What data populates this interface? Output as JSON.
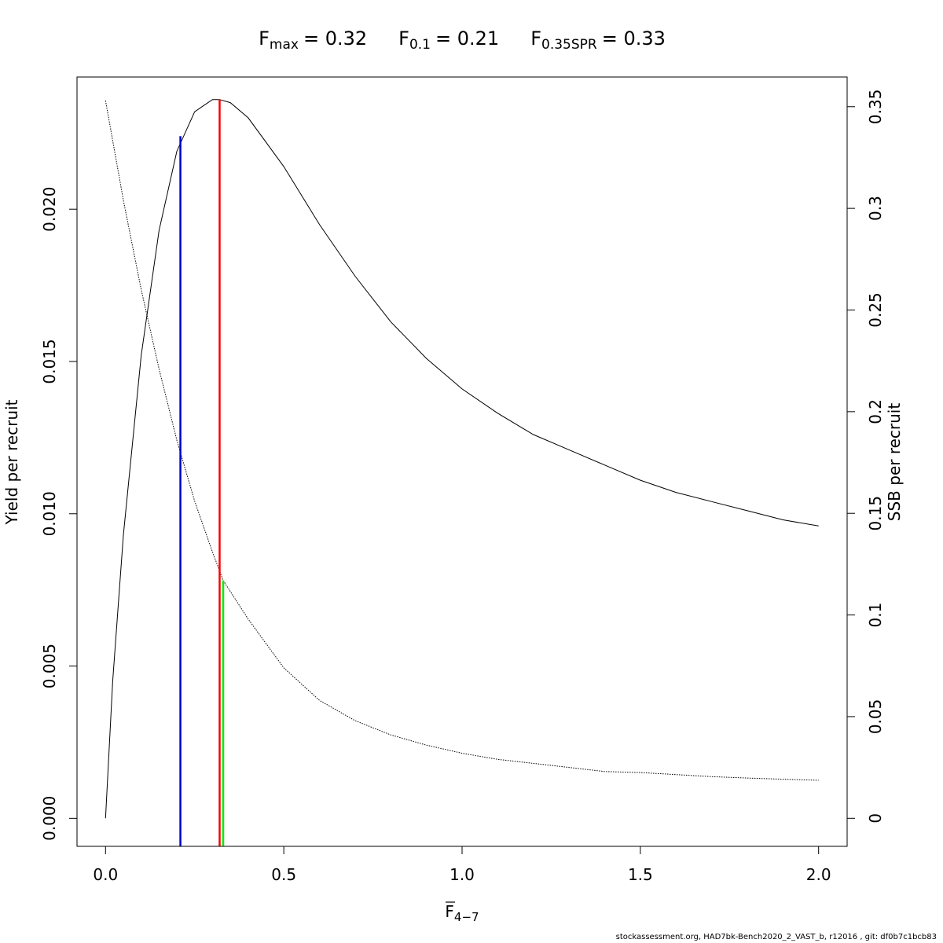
{
  "chart_data": {
    "type": "line",
    "title": {
      "fmax": {
        "base": "F",
        "sub": "max",
        "value": "= 0.32"
      },
      "f01": {
        "base": "F",
        "sub": "0.1",
        "value": "= 0.21"
      },
      "fspr": {
        "base": "F",
        "sub": "0.35SPR",
        "value": "= 0.33"
      }
    },
    "xlabel": {
      "base": "F",
      "sub": "4−7"
    },
    "ylabel_left": "Yield per recruit",
    "ylabel_right": "SSB per recruit",
    "xlim": [
      -0.08,
      2.08
    ],
    "ylim_left": [
      -0.00092,
      0.02434
    ],
    "ylim_right": [
      -0.0138,
      0.3646
    ],
    "x_ticks": [
      0,
      0.5,
      1,
      1.5,
      2
    ],
    "x_tick_labels": [
      "0.0",
      "0.5",
      "1.0",
      "1.5",
      "2.0"
    ],
    "y_left_ticks": [
      0,
      0.005,
      0.01,
      0.015,
      0.02
    ],
    "y_left_tick_labels": [
      "0.000",
      "0.005",
      "0.010",
      "0.015",
      "0.020"
    ],
    "y_right_ticks": [
      0,
      0.05,
      0.1,
      0.15,
      0.2,
      0.25,
      0.3,
      0.35
    ],
    "y_right_tick_labels": [
      "0",
      "0.05",
      "0.1",
      "0.15",
      "0.2",
      "0.25",
      "0.3",
      "0.35"
    ],
    "series": [
      {
        "axis": "left",
        "style": "solid",
        "color": "#000000",
        "x": [
          0,
          0.02,
          0.05,
          0.1,
          0.15,
          0.2,
          0.25,
          0.3,
          0.32,
          0.35,
          0.4,
          0.5,
          0.6,
          0.7,
          0.8,
          0.9,
          1.0,
          1.1,
          1.2,
          1.3,
          1.4,
          1.5,
          1.6,
          1.7,
          1.8,
          1.9,
          2.0
        ],
        "values": [
          0,
          0.0045,
          0.0093,
          0.0152,
          0.0193,
          0.0219,
          0.0232,
          0.0236,
          0.0236,
          0.0235,
          0.023,
          0.0214,
          0.0195,
          0.0178,
          0.0163,
          0.0151,
          0.0141,
          0.0133,
          0.0126,
          0.0121,
          0.0116,
          0.0111,
          0.0107,
          0.0104,
          0.0101,
          0.0098,
          0.0096
        ]
      },
      {
        "axis": "right",
        "style": "dotted",
        "color": "#000000",
        "x": [
          0,
          0.05,
          0.1,
          0.15,
          0.2,
          0.25,
          0.3,
          0.33,
          0.4,
          0.5,
          0.6,
          0.7,
          0.8,
          0.9,
          1.0,
          1.1,
          1.2,
          1.3,
          1.4,
          1.5,
          1.6,
          1.7,
          1.8,
          1.9,
          2.0
        ],
        "values": [
          0.353,
          0.304,
          0.26,
          0.221,
          0.186,
          0.156,
          0.131,
          0.117,
          0.098,
          0.074,
          0.058,
          0.048,
          0.041,
          0.036,
          0.032,
          0.029,
          0.027,
          0.025,
          0.023,
          0.0225,
          0.0215,
          0.0205,
          0.0198,
          0.0192,
          0.0187
        ]
      }
    ],
    "reference_lines": [
      {
        "name": "F0.1",
        "x": 0.21,
        "y_top": 0.0224,
        "axis": "left",
        "color": "#0000cc"
      },
      {
        "name": "Fmax",
        "x": 0.32,
        "y_top": 0.0236,
        "axis": "left",
        "color": "#ff0000"
      },
      {
        "name": "F0.35SPR",
        "x": 0.33,
        "y_top": 0.117,
        "axis": "right",
        "color": "#00ee00"
      }
    ]
  },
  "footer": "stockassessment.org, HAD7bk-Bench2020_2_VAST_b, r12016 , git: df0b7c1bcb83"
}
